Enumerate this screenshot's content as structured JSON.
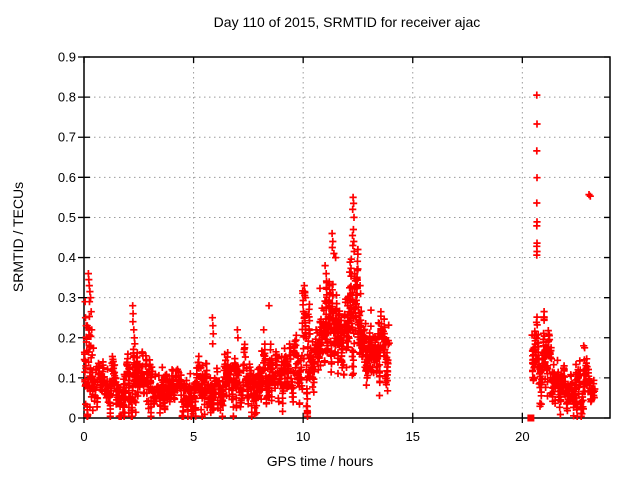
{
  "chart_data": {
    "type": "scatter",
    "title": "Day 110 of 2015, SRMTID for receiver ajac",
    "xlabel": "GPS time / hours",
    "ylabel": "SRMTID / TECUs",
    "xlim": [
      0,
      24
    ],
    "ylim": [
      0,
      0.9
    ],
    "x_ticks": [
      {
        "v": 0,
        "label": "0"
      },
      {
        "v": 5,
        "label": "5"
      },
      {
        "v": 10,
        "label": "10"
      },
      {
        "v": 15,
        "label": "15"
      },
      {
        "v": 20,
        "label": "20"
      }
    ],
    "y_ticks": [
      {
        "v": 0.0,
        "label": "0"
      },
      {
        "v": 0.1,
        "label": "0.1"
      },
      {
        "v": 0.2,
        "label": "0.2"
      },
      {
        "v": 0.3,
        "label": "0.3"
      },
      {
        "v": 0.4,
        "label": "0.4"
      },
      {
        "v": 0.5,
        "label": "0.5"
      },
      {
        "v": 0.6,
        "label": "0.6"
      },
      {
        "v": 0.7,
        "label": "0.7"
      },
      {
        "v": 0.8,
        "label": "0.8"
      },
      {
        "v": 0.9,
        "label": "0.9"
      }
    ],
    "grid": {
      "show": true,
      "color": "#9b9b9b",
      "dash": "1.5 3.5"
    },
    "border_color": "#000000",
    "marker": {
      "shape": "plus",
      "color": "#ff0000",
      "size": 7.2,
      "stroke_width": 1.7
    },
    "flag_point": {
      "x": 20.39,
      "y": 0.0,
      "shape": "filled-square",
      "size": 7,
      "color": "#ff0000"
    },
    "data_gap_hours": [
      13.92,
      20.39
    ],
    "render_seed": 20151101,
    "band_fields": [
      "x_start",
      "x_end",
      "y_center_start",
      "y_center_end",
      "y_spread",
      "n_points",
      "y_max"
    ],
    "bands": [
      [
        0.02,
        0.45,
        0.14,
        0.11,
        0.09,
        55,
        0.27
      ],
      [
        0.45,
        2.05,
        0.08,
        0.075,
        0.05,
        130,
        0.18
      ],
      [
        2.05,
        2.45,
        0.095,
        0.09,
        0.06,
        40,
        0.21
      ],
      [
        2.45,
        4.7,
        0.075,
        0.08,
        0.05,
        185,
        0.17
      ],
      [
        4.7,
        5.05,
        0.05,
        0.06,
        0.04,
        28,
        0.12
      ],
      [
        5.05,
        5.85,
        0.085,
        0.09,
        0.05,
        65,
        0.2
      ],
      [
        5.85,
        8.45,
        0.08,
        0.1,
        0.05,
        210,
        0.22
      ],
      [
        8.45,
        9.95,
        0.11,
        0.13,
        0.055,
        125,
        0.24
      ],
      [
        9.95,
        10.3,
        0.2,
        0.16,
        0.09,
        45,
        0.33
      ],
      [
        10.3,
        10.75,
        0.13,
        0.15,
        0.06,
        40,
        0.22
      ],
      [
        10.75,
        11.65,
        0.24,
        0.26,
        0.085,
        115,
        0.38
      ],
      [
        11.65,
        12.1,
        0.2,
        0.22,
        0.07,
        50,
        0.3
      ],
      [
        12.1,
        12.5,
        0.28,
        0.3,
        0.09,
        48,
        0.42
      ],
      [
        12.5,
        13.1,
        0.2,
        0.18,
        0.065,
        72,
        0.33
      ],
      [
        13.1,
        13.92,
        0.17,
        0.18,
        0.06,
        85,
        0.28
      ],
      [
        20.45,
        21.0,
        0.17,
        0.2,
        0.075,
        60,
        0.31
      ],
      [
        21.0,
        21.4,
        0.16,
        0.12,
        0.06,
        40,
        0.26
      ],
      [
        21.4,
        21.85,
        0.1,
        0.07,
        0.045,
        36,
        0.17
      ],
      [
        21.85,
        22.45,
        0.065,
        0.075,
        0.04,
        48,
        0.13
      ],
      [
        22.45,
        23.05,
        0.1,
        0.11,
        0.055,
        55,
        0.18
      ],
      [
        23.05,
        23.3,
        0.085,
        0.07,
        0.04,
        24,
        0.14
      ]
    ],
    "outlier_points": [
      [
        0.05,
        0.29
      ],
      [
        0.07,
        0.25
      ],
      [
        0.1,
        0.23
      ],
      [
        0.15,
        0.23
      ],
      [
        0.2,
        0.36
      ],
      [
        0.22,
        0.345
      ],
      [
        0.24,
        0.33
      ],
      [
        0.27,
        0.315
      ],
      [
        0.3,
        0.3
      ],
      [
        0.25,
        0.29
      ],
      [
        0.33,
        0.265
      ],
      [
        0.2,
        0.225
      ],
      [
        0.35,
        0.22
      ],
      [
        2.22,
        0.28
      ],
      [
        2.24,
        0.26
      ],
      [
        2.23,
        0.24
      ],
      [
        2.27,
        0.22
      ],
      [
        2.3,
        0.2
      ],
      [
        2.32,
        0.185
      ],
      [
        5.86,
        0.25
      ],
      [
        5.88,
        0.23
      ],
      [
        5.9,
        0.21
      ],
      [
        5.87,
        0.185
      ],
      [
        7.0,
        0.22
      ],
      [
        7.02,
        0.2
      ],
      [
        8.2,
        0.22
      ],
      [
        8.44,
        0.28
      ],
      [
        10.05,
        0.33
      ],
      [
        10.07,
        0.315
      ],
      [
        10.1,
        0.3
      ],
      [
        10.15,
        0.03
      ],
      [
        11.0,
        0.38
      ],
      [
        11.05,
        0.36
      ],
      [
        11.32,
        0.46
      ],
      [
        11.35,
        0.44
      ],
      [
        11.33,
        0.425
      ],
      [
        11.4,
        0.41
      ],
      [
        11.48,
        0.4
      ],
      [
        12.28,
        0.55
      ],
      [
        12.3,
        0.535
      ],
      [
        12.26,
        0.52
      ],
      [
        12.32,
        0.5
      ],
      [
        12.29,
        0.47
      ],
      [
        12.25,
        0.455
      ],
      [
        12.31,
        0.44
      ],
      [
        12.27,
        0.43
      ],
      [
        12.33,
        0.415
      ],
      [
        12.6,
        0.33
      ],
      [
        12.62,
        0.31
      ],
      [
        20.66,
        0.805
      ],
      [
        20.67,
        0.733
      ],
      [
        20.66,
        0.666
      ],
      [
        20.67,
        0.599
      ],
      [
        20.66,
        0.536
      ],
      [
        20.67,
        0.489
      ],
      [
        20.66,
        0.479
      ],
      [
        20.67,
        0.436
      ],
      [
        20.66,
        0.428
      ],
      [
        20.67,
        0.415
      ],
      [
        20.66,
        0.406
      ],
      [
        22.8,
        0.18
      ],
      [
        22.84,
        0.175
      ],
      [
        23.04,
        0.557
      ],
      [
        23.1,
        0.553
      ]
    ]
  }
}
